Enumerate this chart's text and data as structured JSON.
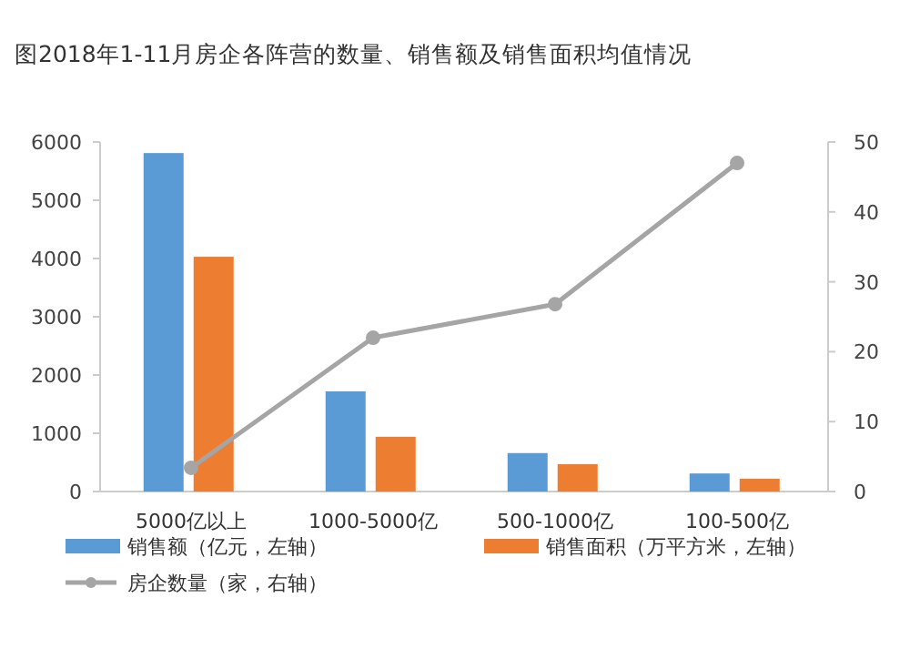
{
  "chart_data": {
    "type": "bar",
    "title": "图2018年1-11月房企各阵营的数量、销售额及销售面积均值情况",
    "categories": [
      "5000亿以上",
      "1000-5000亿",
      "500-1000亿",
      "100-500亿"
    ],
    "series": [
      {
        "name": "销售额（亿元，左轴）",
        "color": "#5b9bd5",
        "values": [
          5810,
          1720,
          660,
          310
        ]
      },
      {
        "name": "销售面积（万平方米，左轴）",
        "color": "#ed7d31",
        "values": [
          4030,
          940,
          470,
          220
        ]
      },
      {
        "name": "房企数量（家，右轴）",
        "color": "#a5a5a5",
        "type": "line",
        "axis": "y2",
        "marker": "circle",
        "values": [
          3.4,
          22,
          26.8,
          47
        ]
      }
    ],
    "ylim": [
      0,
      6000
    ],
    "yticks": [
      0,
      1000,
      2000,
      3000,
      4000,
      5000,
      6000
    ],
    "y2lim": [
      0,
      50
    ],
    "y2ticks": [
      0,
      10,
      20,
      30,
      40,
      50
    ],
    "grid": false,
    "legend": "bottom"
  }
}
